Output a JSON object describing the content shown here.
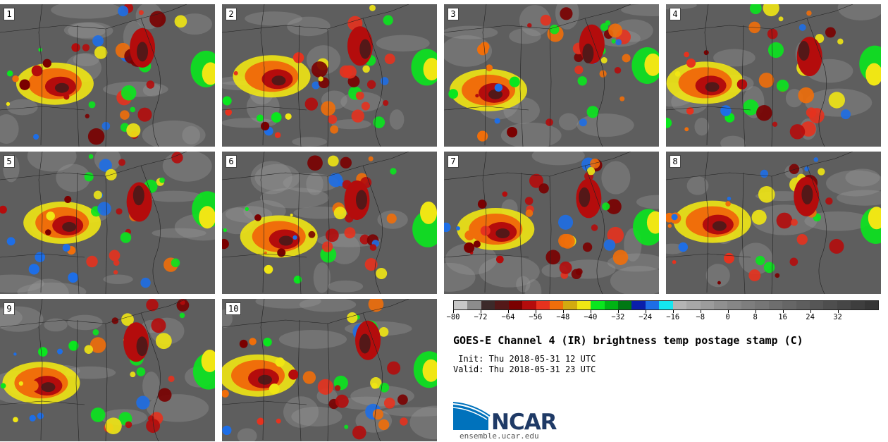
{
  "panels": [
    {
      "label": "1"
    },
    {
      "label": "2"
    },
    {
      "label": "3"
    },
    {
      "label": "4"
    },
    {
      "label": "5"
    },
    {
      "label": "6"
    },
    {
      "label": "7"
    },
    {
      "label": "8"
    },
    {
      "label": "9"
    },
    {
      "label": "10"
    }
  ],
  "colorbar": {
    "colors": [
      "#c8c8c8",
      "#8c8c8c",
      "#3c2a2a",
      "#541818",
      "#7a0000",
      "#b40c0c",
      "#e6321e",
      "#f06e0a",
      "#d2aa10",
      "#f0e614",
      "#0ae61e",
      "#00b414",
      "#007814",
      "#0a1eaa",
      "#1e6ee6",
      "#14e6f0",
      "#b4b4b4",
      "#a8a8a8",
      "#9c9c9c",
      "#909090",
      "#868686",
      "#7e7e7e",
      "#767676",
      "#6e6e6e",
      "#666666",
      "#5e5e5e",
      "#565656",
      "#4e4e4e",
      "#464646",
      "#3e3e3e",
      "#363636"
    ],
    "tick_labels": [
      "−80",
      "−72",
      "−64",
      "−56",
      "−48",
      "−40",
      "−32",
      "−24",
      "−16",
      "−8",
      "0",
      "8",
      "16",
      "24",
      "32"
    ],
    "tick_values": [
      -80,
      -72,
      -64,
      -56,
      -48,
      -40,
      -32,
      -24,
      -16,
      -8,
      0,
      8,
      16,
      24,
      32
    ],
    "min": -80,
    "max": 44
  },
  "title": "GOES-E Channel 4 (IR) brightness temp postage stamp (C)",
  "init_line": " Init: Thu 2018-05-31 12 UTC",
  "valid_line": "Valid: Thu 2018-05-31 23 UTC",
  "logo": {
    "name": "ncar-logo",
    "text": "NCAR",
    "accent": "#0072bc"
  },
  "url": "ensemble.ucar.edu"
}
